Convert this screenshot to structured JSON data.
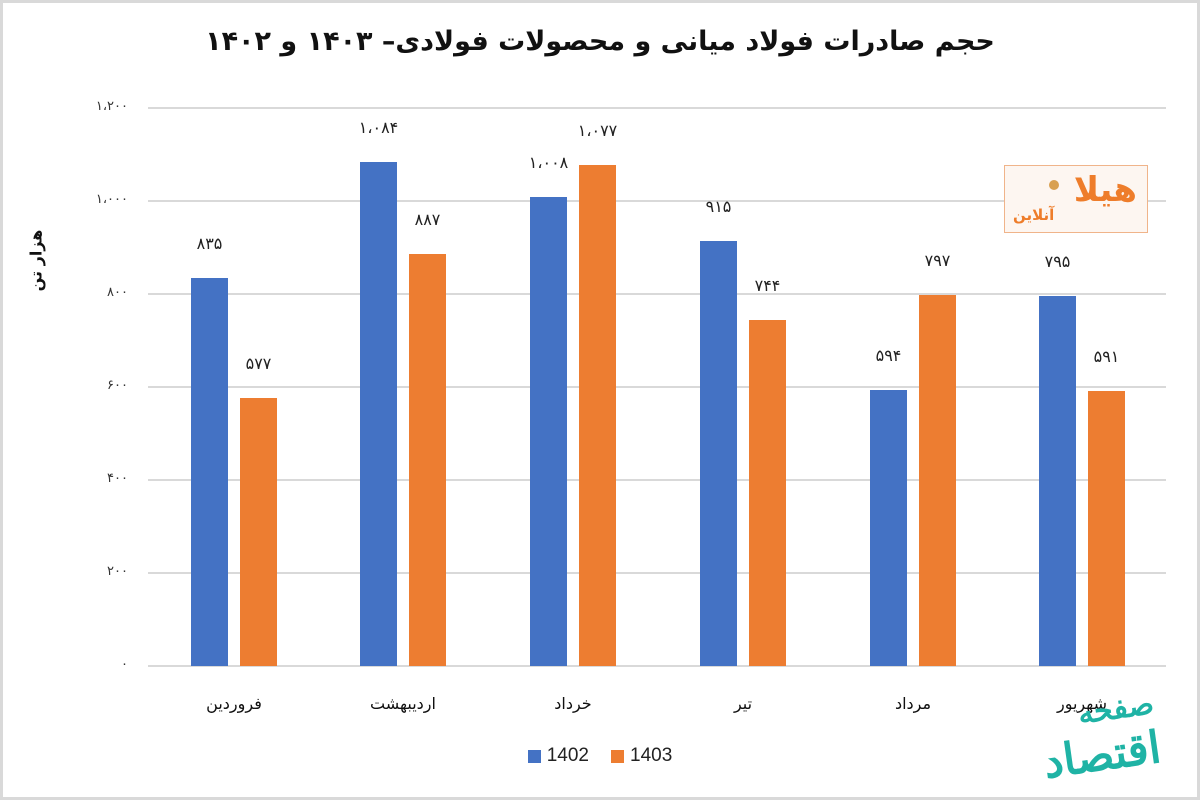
{
  "chart_data": {
    "type": "bar",
    "title": "حجم صادرات فولاد میانی و محصولات فولادی– ۱۴۰۳ و ۱۴۰۲",
    "xlabel": "",
    "ylabel": "هزار تن",
    "ylim": [
      0,
      1200
    ],
    "yticks": [
      0,
      200,
      400,
      600,
      800,
      1000,
      1200
    ],
    "ytick_labels": [
      "۰",
      "۲۰۰",
      "۴۰۰",
      "۶۰۰",
      "۸۰۰",
      "۱،۰۰۰",
      "۱،۲۰۰"
    ],
    "grid": true,
    "legend_position": "bottom",
    "categories": [
      "فروردین",
      "اردیبهشت",
      "خرداد",
      "تیر",
      "مرداد",
      "شهریور"
    ],
    "series": [
      {
        "name": "1402",
        "color": "#4472c4",
        "values": [
          835,
          1084,
          1008,
          915,
          594,
          795
        ],
        "labels": [
          "۸۳۵",
          "۱،۰۸۴",
          "۱،۰۰۸",
          "۹۱۵",
          "۵۹۴",
          "۷۹۵"
        ]
      },
      {
        "name": "1403",
        "color": "#ed7d31",
        "values": [
          577,
          887,
          1077,
          744,
          797,
          591
        ],
        "labels": [
          "۵۷۷",
          "۸۸۷",
          "۱،۰۷۷",
          "۷۴۴",
          "۷۹۷",
          "۵۹۱"
        ]
      }
    ]
  },
  "logo": {
    "main": "هیلا",
    "sub": "آنلاین"
  },
  "watermark": {
    "line1": "صفحه",
    "line2": "اقتصاد"
  }
}
